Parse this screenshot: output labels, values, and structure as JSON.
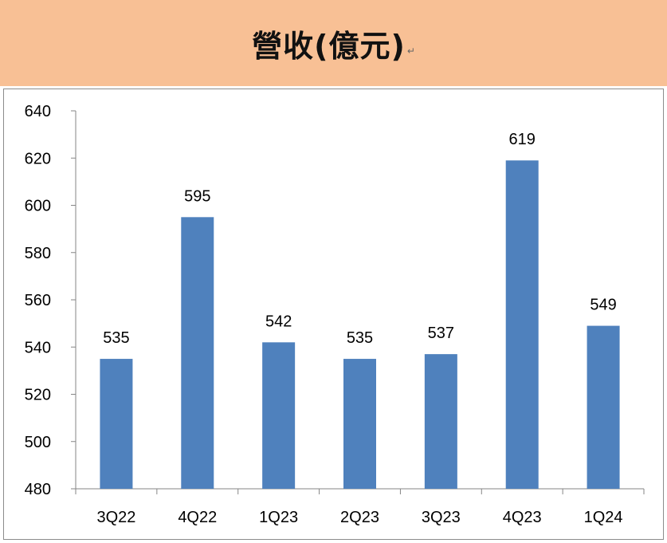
{
  "header": {
    "title": "營收(億元)",
    "mark": "↵"
  },
  "chart_data": {
    "type": "bar",
    "title": "營收(億元)",
    "categories": [
      "3Q22",
      "4Q22",
      "1Q23",
      "2Q23",
      "3Q23",
      "4Q23",
      "1Q24"
    ],
    "values": [
      535,
      595,
      542,
      535,
      537,
      619,
      549
    ],
    "data_labels": [
      "535",
      "595",
      "542",
      "535",
      "537",
      "619",
      "549"
    ],
    "ylim": [
      480,
      640
    ],
    "yticks": [
      "480",
      "500",
      "520",
      "540",
      "560",
      "580",
      "600",
      "620",
      "640"
    ],
    "xlabel": "",
    "ylabel": "",
    "grid": false,
    "legend": "none",
    "bar_color": "#4f81bd"
  }
}
